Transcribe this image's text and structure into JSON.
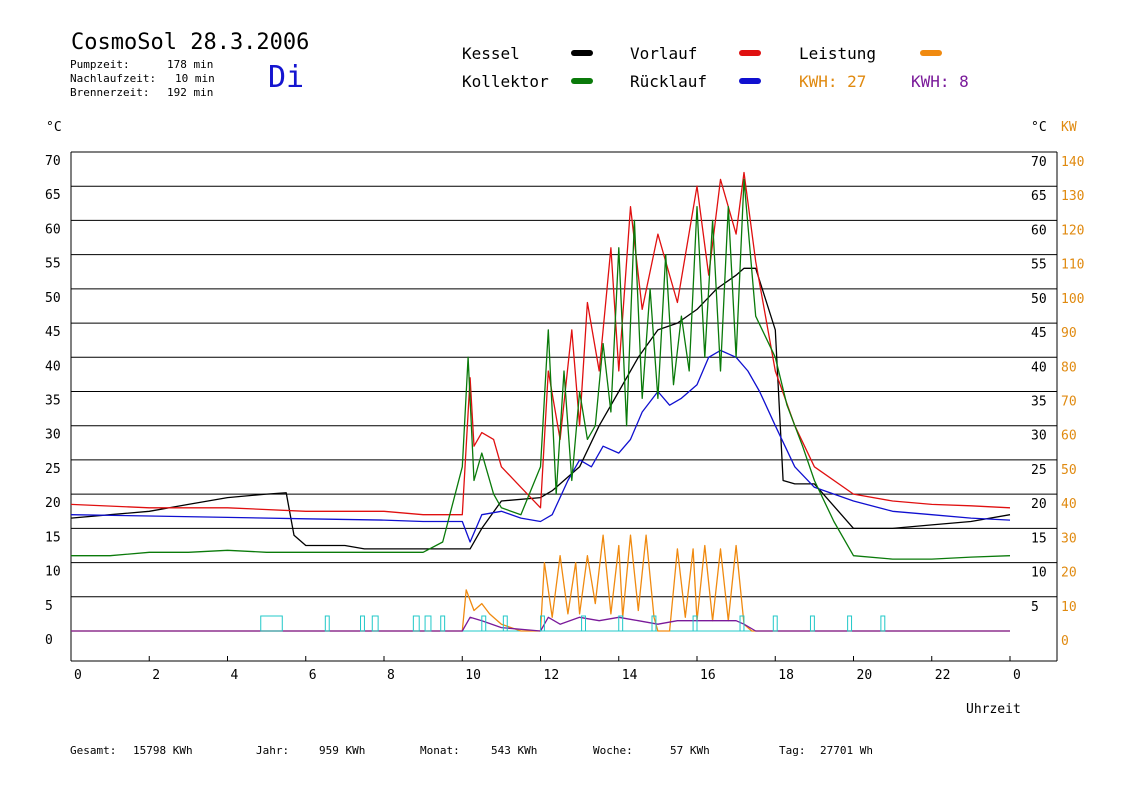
{
  "header": {
    "title": "CosmoSol 28.3.2006",
    "day": "Di",
    "stats": [
      {
        "label": "Pumpzeit:",
        "value": "178 min"
      },
      {
        "label": "Nachlaufzeit:",
        "value": "10 min"
      },
      {
        "label": "Brennerzeit:",
        "value": "192 min"
      }
    ]
  },
  "legend": {
    "items": [
      {
        "name": "Kessel",
        "color": "#000000"
      },
      {
        "name": "Vorlauf",
        "color": "#e01010"
      },
      {
        "name": "Leistung",
        "color": "#f08a10"
      },
      {
        "name": "Kollektor",
        "color": "#0a7a0a"
      },
      {
        "name": "Rücklauf",
        "color": "#1010d0"
      }
    ],
    "kwh_left": "KWH: 27",
    "kwh_left_color": "#e08a10",
    "kwh_right": "KWH: 8",
    "kwh_right_color": "#7a1a9a"
  },
  "footer": [
    {
      "label": "Gesamt:",
      "value": "15798 KWh"
    },
    {
      "label": "Jahr:",
      "value": "959 KWh"
    },
    {
      "label": "Monat:",
      "value": "543 KWh"
    },
    {
      "label": "Woche:",
      "value": "57 KWh"
    },
    {
      "label": "Tag:",
      "value": "27701 Wh"
    }
  ],
  "chart_data": {
    "type": "line",
    "xlabel": "Uhrzeit",
    "x_ticks": [
      "0",
      "2",
      "4",
      "6",
      "8",
      "10",
      "12",
      "14",
      "16",
      "18",
      "20",
      "22",
      "0"
    ],
    "xlim": [
      0,
      24
    ],
    "ylabel_left": "°C",
    "ylabel_right_temp": "°C",
    "ylabel_right_power": "KW",
    "ylim": [
      0,
      70
    ],
    "y_ticks": [
      0,
      5,
      10,
      15,
      20,
      25,
      30,
      35,
      40,
      45,
      50,
      55,
      60,
      65,
      70
    ],
    "power_ticks": [
      0,
      10,
      20,
      30,
      40,
      50,
      60,
      70,
      80,
      90,
      100,
      110,
      120,
      130,
      140
    ],
    "grid": true,
    "series": [
      {
        "name": "Kessel",
        "color": "#000000",
        "x": [
          0,
          1,
          2,
          3,
          4,
          5,
          5.5,
          5.7,
          6,
          7,
          7.5,
          8,
          9,
          10,
          10.2,
          10.5,
          11,
          12,
          12.3,
          12.5,
          13,
          13.5,
          14,
          14.5,
          15,
          15.5,
          16,
          16.5,
          17,
          17.2,
          17.5,
          18,
          18.2,
          18.5,
          19,
          20,
          21,
          22,
          23,
          24
        ],
        "y": [
          16.5,
          17,
          17.5,
          18.5,
          19.5,
          20,
          20.2,
          14,
          12.5,
          12.5,
          12,
          12,
          12,
          12,
          12,
          15,
          19,
          19.5,
          20.5,
          21.5,
          24,
          30,
          35,
          40,
          44,
          45,
          47,
          50,
          52,
          53,
          53,
          44,
          22,
          21.5,
          21.5,
          15,
          15,
          15.5,
          16,
          17
        ]
      },
      {
        "name": "Vorlauf",
        "color": "#e01010",
        "x": [
          0,
          2,
          4,
          6,
          8,
          9,
          10,
          10.2,
          10.3,
          10.5,
          10.8,
          11,
          11.5,
          12,
          12.2,
          12.5,
          12.8,
          13,
          13.2,
          13.5,
          13.8,
          14,
          14.3,
          14.6,
          15,
          15.5,
          16,
          16.3,
          16.6,
          17,
          17.2,
          17.5,
          18,
          18.5,
          19,
          20,
          21,
          22,
          23,
          24
        ],
        "y": [
          18.5,
          18,
          18,
          17.5,
          17.5,
          17,
          17,
          37,
          27,
          29,
          28,
          24,
          21,
          18,
          38,
          28,
          44,
          30,
          48,
          38,
          56,
          38,
          62,
          47,
          58,
          48,
          65,
          52,
          66,
          58,
          67,
          54,
          38,
          30,
          24,
          20,
          19,
          18.5,
          18.3,
          18
        ]
      },
      {
        "name": "Rücklauf",
        "color": "#1010d0",
        "x": [
          0,
          2,
          4,
          6,
          8,
          9,
          10,
          10.2,
          10.5,
          11,
          11.5,
          12,
          12.3,
          12.7,
          13,
          13.3,
          13.6,
          14,
          14.3,
          14.6,
          15,
          15.3,
          15.6,
          16,
          16.3,
          16.6,
          17,
          17.3,
          17.6,
          18,
          18.5,
          19,
          20,
          21,
          22,
          23,
          24
        ],
        "y": [
          17,
          16.8,
          16.6,
          16.4,
          16.2,
          16,
          16,
          13,
          17,
          17.5,
          16.5,
          16,
          17,
          22,
          25,
          24,
          27,
          26,
          28,
          32,
          35,
          33,
          34,
          36,
          40,
          41,
          40,
          38,
          35,
          30,
          24,
          21,
          19,
          17.5,
          17,
          16.5,
          16.2
        ]
      },
      {
        "name": "Kollektor",
        "color": "#0a7a0a",
        "x": [
          0,
          1,
          2,
          3,
          4,
          5,
          6,
          7,
          8,
          9,
          9.5,
          10,
          10.15,
          10.3,
          10.5,
          10.8,
          11,
          11.5,
          12,
          12.2,
          12.4,
          12.6,
          12.8,
          13,
          13.2,
          13.4,
          13.6,
          13.8,
          14,
          14.2,
          14.4,
          14.6,
          14.8,
          15,
          15.2,
          15.4,
          15.6,
          15.8,
          16,
          16.2,
          16.4,
          16.6,
          16.8,
          17,
          17.2,
          17.5,
          18,
          18.3,
          18.7,
          19,
          19.5,
          20,
          21,
          22,
          23,
          24
        ],
        "y": [
          11,
          11,
          11.5,
          11.5,
          11.8,
          11.5,
          11.5,
          11.5,
          11.5,
          11.5,
          13,
          24,
          40,
          22,
          26,
          20,
          18,
          17,
          24,
          44,
          20,
          38,
          22,
          35,
          28,
          30,
          42,
          32,
          56,
          30,
          60,
          34,
          50,
          34,
          55,
          36,
          46,
          38,
          62,
          40,
          60,
          38,
          62,
          40,
          66,
          46,
          40,
          33,
          27,
          22,
          16,
          11,
          10.5,
          10.5,
          10.8,
          11
        ]
      },
      {
        "name": "Leistung",
        "color": "#f08a10",
        "axis": "power",
        "x": [
          0,
          10,
          10.1,
          10.3,
          10.5,
          10.7,
          11,
          11.5,
          12,
          12.1,
          12.3,
          12.5,
          12.7,
          12.9,
          13,
          13.2,
          13.4,
          13.6,
          13.8,
          14,
          14.1,
          14.3,
          14.5,
          14.7,
          14.9,
          15,
          15.3,
          15.5,
          15.7,
          15.9,
          16,
          16.2,
          16.4,
          16.6,
          16.8,
          17,
          17.2,
          17.4,
          18,
          24
        ],
        "y": [
          0,
          0,
          12,
          6,
          8,
          5,
          2,
          0,
          0,
          20,
          4,
          22,
          5,
          20,
          5,
          22,
          8,
          28,
          5,
          25,
          4,
          28,
          6,
          28,
          4,
          0,
          0,
          24,
          4,
          24,
          3,
          25,
          3,
          24,
          3,
          25,
          2,
          0,
          0,
          0
        ]
      },
      {
        "name": "Leistung-Tag",
        "color": "#7a1a9a",
        "axis": "power",
        "x": [
          0,
          10,
          10.2,
          10.5,
          11,
          12,
          12.2,
          12.5,
          13,
          13.5,
          14,
          14.5,
          15,
          15.5,
          16,
          16.5,
          17,
          17.2,
          17.5,
          24
        ],
        "y": [
          0,
          0,
          4,
          3,
          1,
          0,
          4,
          2,
          4,
          3,
          4,
          3,
          2,
          3,
          3,
          3,
          3,
          2,
          0,
          0
        ]
      },
      {
        "name": "Pumpe",
        "color": "#20c8c8",
        "type": "pulse",
        "intervals": [
          [
            4.85,
            5.4
          ],
          [
            6.5,
            6.6
          ],
          [
            7.4,
            7.5
          ],
          [
            7.7,
            7.85
          ],
          [
            8.75,
            8.9
          ],
          [
            9.05,
            9.2
          ],
          [
            9.45,
            9.55
          ],
          [
            10.5,
            10.6
          ],
          [
            11.05,
            11.15
          ],
          [
            12,
            12.1
          ],
          [
            13.05,
            13.15
          ],
          [
            14,
            14.1
          ],
          [
            14.85,
            14.95
          ],
          [
            15.9,
            16
          ],
          [
            17.1,
            17.2
          ],
          [
            17.95,
            18.05
          ],
          [
            18.9,
            19
          ],
          [
            19.85,
            19.95
          ],
          [
            20.7,
            20.8
          ]
        ]
      }
    ]
  }
}
